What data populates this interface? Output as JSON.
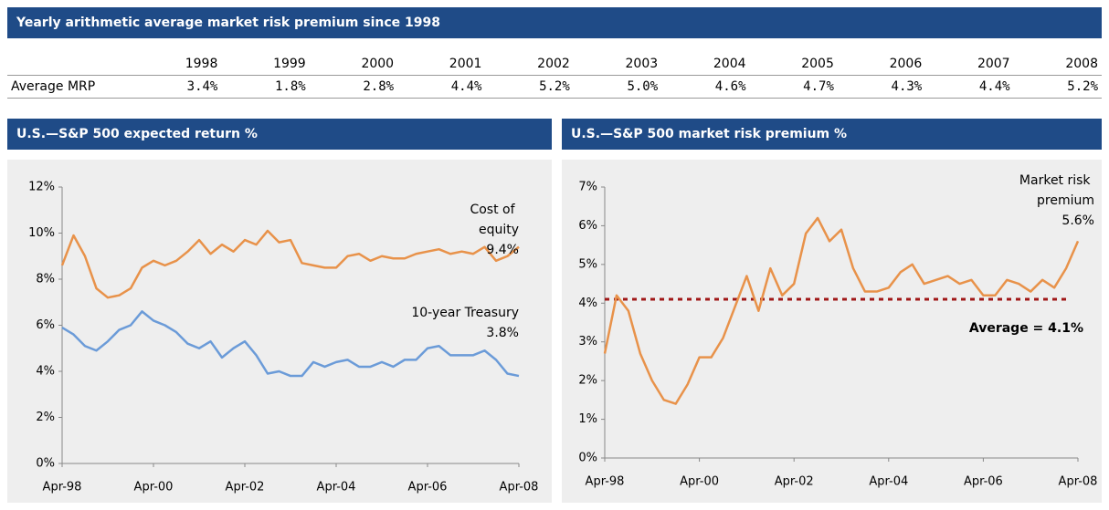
{
  "header": {
    "title": "Yearly arithmetic average market risk premium since 1998"
  },
  "table": {
    "columns": [
      "1998",
      "1999",
      "2000",
      "2001",
      "2002",
      "2003",
      "2004",
      "2005",
      "2006",
      "2007",
      "2008"
    ],
    "row_label": "Average MRP",
    "values": [
      "3.4%",
      "1.8%",
      "2.8%",
      "4.4%",
      "5.2%",
      "5.0%",
      "4.6%",
      "4.7%",
      "4.3%",
      "4.4%",
      "5.2%"
    ]
  },
  "chart_data": [
    {
      "type": "line",
      "title": "U.S.—S&P 500 expected return %",
      "categories": [
        "Apr-98",
        null,
        null,
        null,
        null,
        null,
        null,
        null,
        "Apr-00",
        null,
        null,
        null,
        null,
        null,
        null,
        null,
        "Apr-02",
        null,
        null,
        null,
        null,
        null,
        null,
        null,
        "Apr-04",
        null,
        null,
        null,
        null,
        null,
        null,
        null,
        "Apr-06",
        null,
        null,
        null,
        null,
        null,
        null,
        null,
        "Apr-08"
      ],
      "ylim": [
        0,
        12
      ],
      "yticks": [
        {
          "value": 0,
          "label": "0%"
        },
        {
          "value": 2,
          "label": "2%"
        },
        {
          "value": 4,
          "label": "4%"
        },
        {
          "value": 6,
          "label": "6%"
        },
        {
          "value": 8,
          "label": "8%"
        },
        {
          "value": 10,
          "label": "10%"
        },
        {
          "value": 12,
          "label": "12%"
        }
      ],
      "series": [
        {
          "name": "Cost of equity",
          "color": "#e8924a",
          "values": [
            8.6,
            9.9,
            9.0,
            7.6,
            7.2,
            7.3,
            7.6,
            8.5,
            8.8,
            8.6,
            8.8,
            9.2,
            9.7,
            9.1,
            9.5,
            9.2,
            9.7,
            9.5,
            10.1,
            9.6,
            9.7,
            8.7,
            8.6,
            8.5,
            8.5,
            9.0,
            9.1,
            8.8,
            9.0,
            8.9,
            8.9,
            9.1,
            9.2,
            9.3,
            9.1,
            9.2,
            9.1,
            9.4,
            8.8,
            9.0,
            9.4
          ],
          "value_labels": [
            null,
            null,
            null,
            null,
            null,
            null,
            null,
            null,
            null,
            null,
            null,
            null,
            null,
            null,
            null,
            null,
            null,
            null,
            null,
            null,
            null,
            null,
            null,
            null,
            null,
            null,
            null,
            null,
            null,
            null,
            null,
            null,
            null,
            null,
            null,
            null,
            null,
            null,
            null,
            null,
            "9.4%"
          ]
        },
        {
          "name": "10-year Treasury",
          "color": "#6b9bd8",
          "values": [
            5.9,
            5.6,
            5.1,
            4.9,
            5.3,
            5.8,
            6.0,
            6.6,
            6.2,
            6.0,
            5.7,
            5.2,
            5.0,
            5.3,
            4.6,
            5.0,
            5.3,
            4.7,
            3.9,
            4.0,
            3.8,
            3.8,
            4.4,
            4.2,
            4.4,
            4.5,
            4.2,
            4.2,
            4.4,
            4.2,
            4.5,
            4.5,
            5.0,
            5.1,
            4.7,
            4.7,
            4.7,
            4.9,
            4.5,
            3.9,
            3.8
          ],
          "value_labels": [
            null,
            null,
            null,
            null,
            null,
            null,
            null,
            null,
            null,
            null,
            null,
            null,
            null,
            null,
            null,
            null,
            null,
            null,
            null,
            null,
            null,
            null,
            null,
            null,
            null,
            null,
            null,
            null,
            null,
            null,
            null,
            null,
            null,
            null,
            null,
            null,
            null,
            null,
            null,
            null,
            "3.8%"
          ]
        }
      ]
    },
    {
      "type": "line",
      "title": "U.S.—S&P 500 market risk premium %",
      "categories": [
        "Apr-98",
        null,
        null,
        null,
        null,
        null,
        null,
        null,
        "Apr-00",
        null,
        null,
        null,
        null,
        null,
        null,
        null,
        "Apr-02",
        null,
        null,
        null,
        null,
        null,
        null,
        null,
        "Apr-04",
        null,
        null,
        null,
        null,
        null,
        null,
        null,
        "Apr-06",
        null,
        null,
        null,
        null,
        null,
        null,
        null,
        "Apr-08"
      ],
      "ylim": [
        0,
        7
      ],
      "yticks": [
        {
          "value": 0,
          "label": "0%"
        },
        {
          "value": 1,
          "label": "1%"
        },
        {
          "value": 2,
          "label": "2%"
        },
        {
          "value": 3,
          "label": "3%"
        },
        {
          "value": 4,
          "label": "4%"
        },
        {
          "value": 5,
          "label": "5%"
        },
        {
          "value": 6,
          "label": "6%"
        },
        {
          "value": 7,
          "label": "7%"
        }
      ],
      "series": [
        {
          "name": "Market risk premium",
          "color": "#e8924a",
          "values": [
            2.7,
            4.2,
            3.8,
            2.7,
            2.0,
            1.5,
            1.4,
            1.9,
            2.6,
            2.6,
            3.1,
            3.9,
            4.7,
            3.8,
            4.9,
            4.2,
            4.5,
            5.8,
            6.2,
            5.6,
            5.9,
            4.9,
            4.3,
            4.3,
            4.4,
            4.8,
            5.0,
            4.5,
            4.6,
            4.7,
            4.5,
            4.6,
            4.2,
            4.2,
            4.6,
            4.5,
            4.3,
            4.6,
            4.4,
            4.9,
            5.6
          ],
          "value_labels": [
            null,
            null,
            null,
            null,
            null,
            null,
            null,
            null,
            null,
            null,
            null,
            null,
            null,
            null,
            null,
            null,
            null,
            null,
            null,
            null,
            null,
            null,
            null,
            null,
            null,
            null,
            null,
            null,
            null,
            null,
            null,
            null,
            null,
            null,
            null,
            null,
            null,
            null,
            null,
            null,
            "5.6%"
          ]
        }
      ],
      "average": {
        "value": 4.1,
        "label": "Average = 4.1%",
        "color": "#a01818"
      }
    }
  ]
}
